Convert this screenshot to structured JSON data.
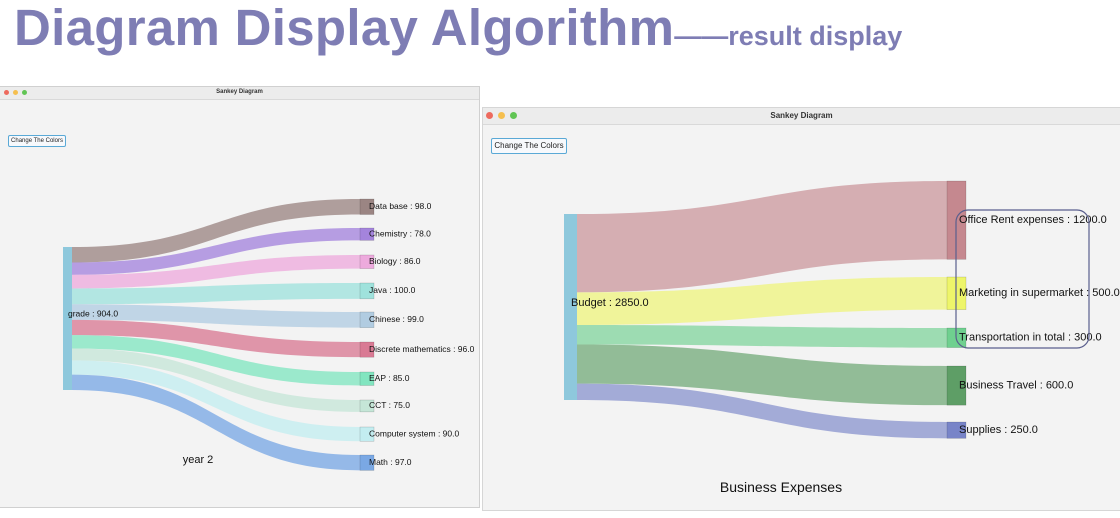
{
  "slide": {
    "title": "Diagram Display Algorithm",
    "subtitle": "——result display"
  },
  "windows": [
    {
      "title": "Sankey Diagram",
      "button_label": "Change The Colors",
      "caption": "year 2",
      "source": {
        "label": "grade : 904.0",
        "color": "#8ec8dc"
      },
      "targets": [
        {
          "label": "Data base : 98.0",
          "value": 98,
          "color": "#9b8583"
        },
        {
          "label": "Chemistry : 78.0",
          "value": 78,
          "color": "#a484dc"
        },
        {
          "label": "Biology : 86.0",
          "value": 86,
          "color": "#edaadd"
        },
        {
          "label": "Java : 100.0",
          "value": 100,
          "color": "#9fe2dc"
        },
        {
          "label": "Chinese : 99.0",
          "value": 99,
          "color": "#b1cce1"
        },
        {
          "label": "Discrete mathematics : 96.0",
          "value": 96,
          "color": "#d97a94"
        },
        {
          "label": "EAP : 85.0",
          "value": 85,
          "color": "#82e5c0"
        },
        {
          "label": "CCT : 75.0",
          "value": 75,
          "color": "#c5e6d7"
        },
        {
          "label": "Computer system : 90.0",
          "value": 90,
          "color": "#c3edf0"
        },
        {
          "label": "Math : 97.0",
          "value": 97,
          "color": "#7aa8e4"
        }
      ]
    },
    {
      "title": "Sankey Diagram",
      "button_label": "Change The Colors",
      "caption": "Business Expenses",
      "source": {
        "label": "Budget : 2850.0",
        "color": "#8ec8dc"
      },
      "targets": [
        {
          "label": "Office Rent expenses : 1200.0",
          "value": 1200,
          "color": "#c5888f"
        },
        {
          "label": "Marketing in supermarket : 500.0",
          "value": 500,
          "color": "#eef56a"
        },
        {
          "label": "Transportation in total : 300.0",
          "value": 300,
          "color": "#6fd08f"
        },
        {
          "label": "Business Travel : 600.0",
          "value": 600,
          "color": "#5e9e66"
        },
        {
          "label": "Supplies : 250.0",
          "value": 250,
          "color": "#7884c8"
        }
      ]
    }
  ]
}
